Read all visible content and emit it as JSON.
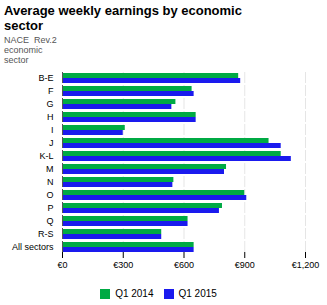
{
  "chart_data": {
    "type": "bar",
    "orientation": "horizontal",
    "title": "Average weekly earnings by economic\nsector",
    "ylabel": "NACE  Rev.2\neconomic\nsector",
    "categories": [
      "B-E",
      "F",
      "G",
      "H",
      "I",
      "J",
      "K-L",
      "M",
      "N",
      "O",
      "P",
      "Q",
      "R-S",
      "All sectors"
    ],
    "series": [
      {
        "name": "Q1 2014",
        "color": "#00aa44",
        "values": [
          870,
          640,
          560,
          660,
          310,
          1020,
          1080,
          810,
          550,
          900,
          790,
          620,
          490,
          650
        ]
      },
      {
        "name": "Q1 2015",
        "color": "#1a1aee",
        "values": [
          880,
          650,
          540,
          660,
          300,
          1080,
          1130,
          800,
          545,
          910,
          775,
          620,
          490,
          650
        ]
      }
    ],
    "xlim": [
      0,
      1200
    ],
    "xticks": [
      {
        "value": 0,
        "label": "€0"
      },
      {
        "value": 300,
        "label": "€300"
      },
      {
        "value": 600,
        "label": "€600"
      },
      {
        "value": 900,
        "label": "€900"
      },
      {
        "value": 1200,
        "label": "€1,200"
      }
    ],
    "grid": true,
    "legend": "bottom"
  }
}
